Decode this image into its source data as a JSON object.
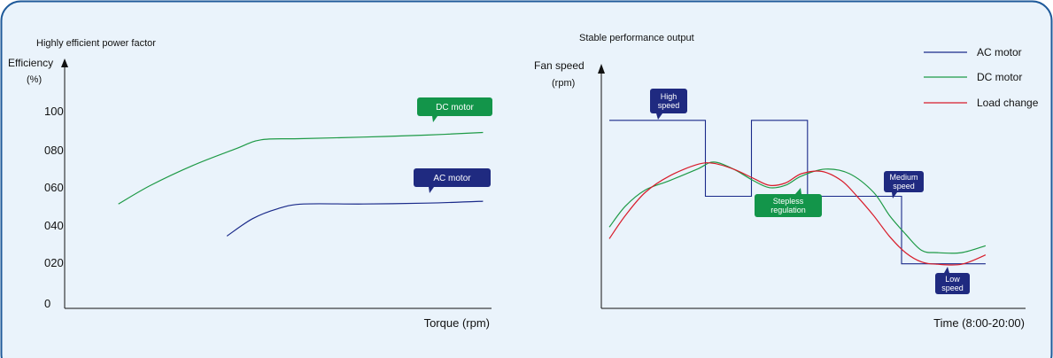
{
  "colors": {
    "panel_border": "#1f5a9a",
    "panel_fill": "#eaf3fb",
    "ac": "#1a2a8a",
    "dc": "#1e9a46",
    "load": "#d81c2a",
    "axis": "#111111",
    "label_ac_bg": "#1f2a80",
    "label_dc_bg": "#13954a"
  },
  "chart_data": [
    {
      "type": "line",
      "title": "Highly efficient power factor",
      "ylabel": "Efficiency",
      "ylabel_unit": "(%)",
      "xlabel": "Torque (rpm)",
      "yticks": [
        "100",
        "080",
        "060",
        "040",
        "020",
        "0"
      ],
      "ylim": [
        0,
        110
      ],
      "xlim": [
        0,
        100
      ],
      "series": [
        {
          "name": "DC motor",
          "color_key": "dc",
          "points": [
            [
              12.6,
              54
            ],
            [
              20,
              64
            ],
            [
              30,
              75
            ],
            [
              40,
              84
            ],
            [
              46,
              89
            ],
            [
              55,
              89.6
            ],
            [
              70,
              90.5
            ],
            [
              85,
              91.6
            ],
            [
              98,
              93
            ]
          ]
        },
        {
          "name": "AC motor",
          "color_key": "ac",
          "points": [
            [
              38,
              36.5
            ],
            [
              44,
              46
            ],
            [
              50,
              51.5
            ],
            [
              56,
              54
            ],
            [
              70,
              54
            ],
            [
              85,
              54.5
            ],
            [
              98,
              55.5
            ]
          ]
        }
      ],
      "callouts": [
        {
          "series": "DC motor",
          "text": "DC motor"
        },
        {
          "series": "AC motor",
          "text": "AC motor"
        }
      ]
    },
    {
      "type": "line",
      "title": "Stable performance output",
      "ylabel": "Fan speed",
      "ylabel_unit": "(rpm)",
      "xlabel": "Time (8:00-20:00)",
      "xlim": [
        0,
        100
      ],
      "ylim": [
        0,
        100
      ],
      "legend_position": "top-right",
      "legend": [
        {
          "name": "AC motor",
          "color_key": "ac"
        },
        {
          "name": "DC motor",
          "color_key": "dc"
        },
        {
          "name": "Load change",
          "color_key": "load"
        }
      ],
      "series": [
        {
          "name": "AC motor",
          "color_key": "ac",
          "step": true,
          "points": [
            [
              2,
              81
            ],
            [
              26,
              81
            ],
            [
              26,
              48.3
            ],
            [
              37.5,
              48.3
            ],
            [
              37.5,
              81
            ],
            [
              51.5,
              81
            ],
            [
              51.5,
              48.3
            ],
            [
              75,
              48.3
            ],
            [
              75,
              19.2
            ],
            [
              96,
              19.2
            ]
          ]
        },
        {
          "name": "DC motor",
          "color_key": "dc",
          "points": [
            [
              2,
              35
            ],
            [
              6,
              44
            ],
            [
              11,
              51
            ],
            [
              17,
              55
            ],
            [
              24,
              60
            ],
            [
              28,
              63
            ],
            [
              33,
              60
            ],
            [
              38,
              55
            ],
            [
              42,
              52
            ],
            [
              46,
              53
            ],
            [
              50,
              57
            ],
            [
              56,
              60
            ],
            [
              62,
              58
            ],
            [
              68,
              50
            ],
            [
              72,
              40
            ],
            [
              76,
              32
            ],
            [
              80,
              25
            ],
            [
              84,
              24
            ],
            [
              90,
              24
            ],
            [
              96,
              27
            ]
          ]
        },
        {
          "name": "Load change",
          "color_key": "load",
          "points": [
            [
              2,
              30
            ],
            [
              6,
              40
            ],
            [
              11,
              50
            ],
            [
              17,
              57
            ],
            [
              24,
              62
            ],
            [
              28,
              62.5
            ],
            [
              33,
              60
            ],
            [
              38,
              56
            ],
            [
              42,
              53
            ],
            [
              46,
              54
            ],
            [
              50,
              58
            ],
            [
              55,
              59
            ],
            [
              60,
              55
            ],
            [
              64,
              48
            ],
            [
              68,
              40
            ],
            [
              72,
              31
            ],
            [
              76,
              24
            ],
            [
              80,
              20
            ],
            [
              84,
              19
            ],
            [
              90,
              19
            ],
            [
              96,
              23
            ]
          ]
        }
      ],
      "callouts": [
        {
          "lines": [
            "High",
            "speed"
          ],
          "color_key": "ac"
        },
        {
          "lines": [
            "Stepless",
            "regulation"
          ],
          "color_key": "dc"
        },
        {
          "lines": [
            "Medium",
            "speed"
          ],
          "color_key": "ac"
        },
        {
          "lines": [
            "Low",
            "speed"
          ],
          "color_key": "ac"
        }
      ]
    }
  ]
}
